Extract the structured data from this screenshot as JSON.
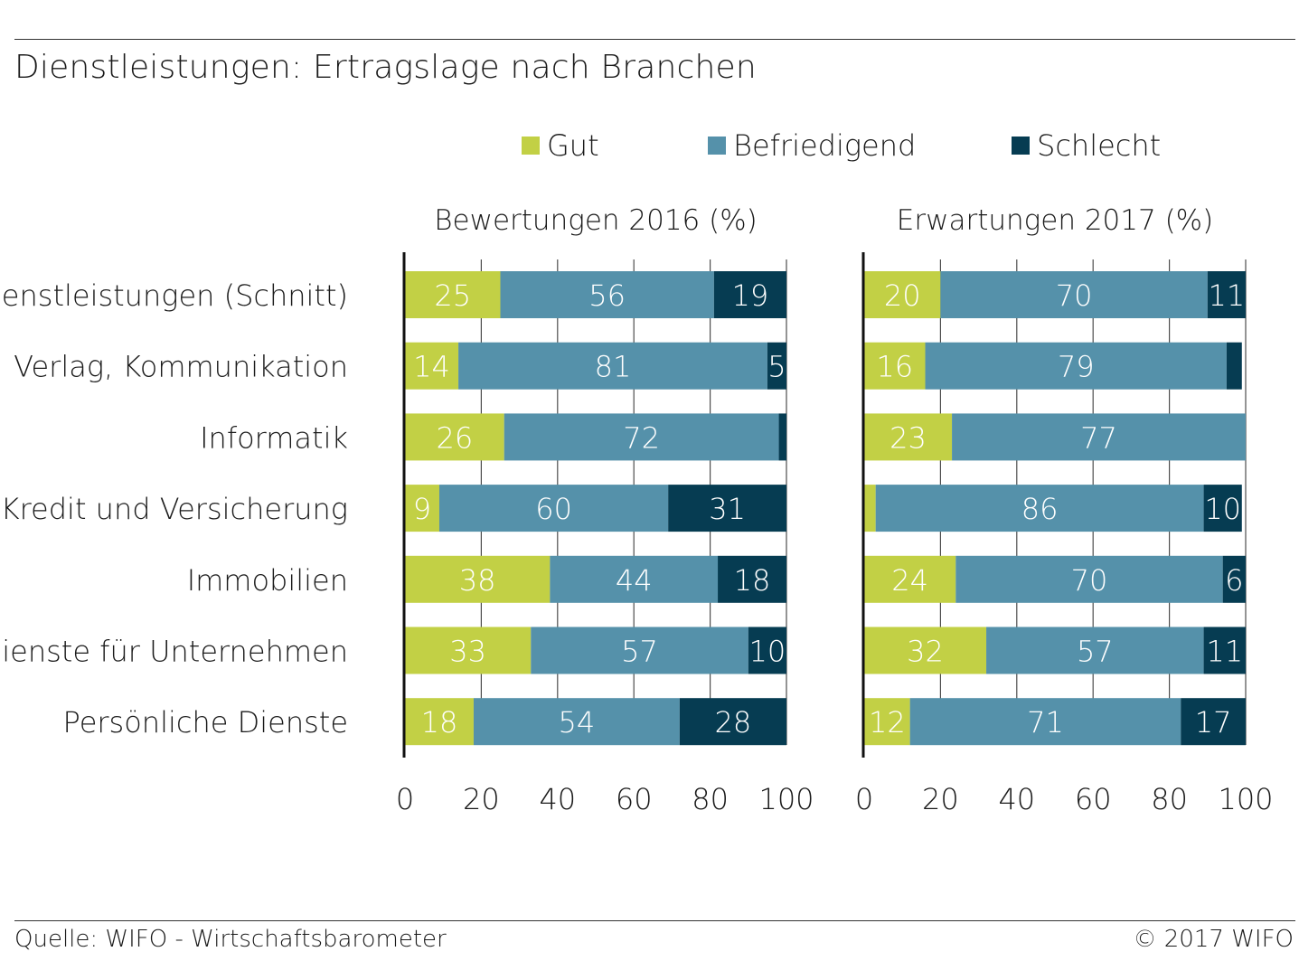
{
  "title": "Dienstleistungen: Ertragslage nach Branchen",
  "footer": {
    "source": "Quelle: WIFO - Wirtschaftsbarometer",
    "copyright": "© 2017 WIFO"
  },
  "colors": {
    "gut": "#c2d045",
    "befriedigend": "#5591aa",
    "schlecht": "#063c52",
    "grid": "#4d4d4d",
    "axis": "#111111"
  },
  "chart_data": {
    "type": "bar",
    "stacked": true,
    "orientation": "horizontal",
    "legend": {
      "position": "top",
      "entries": [
        "Gut",
        "Befriedigend",
        "Schlecht"
      ]
    },
    "categories": [
      "Dienstleistungen (Schnitt)",
      "Verlag, Kommunikation",
      "Informatik",
      "Kredit und Versicherung",
      "Immobilien",
      "Dienste für Unternehmen",
      "Persönliche Dienste"
    ],
    "xlim": [
      0,
      100
    ],
    "xticks": [
      "0",
      "20",
      "40",
      "60",
      "80",
      "100"
    ],
    "grid": true,
    "panels": [
      {
        "subtitle": "Bewertungen 2016 (%)",
        "series": [
          {
            "name": "Gut",
            "values": [
              25,
              14,
              26,
              9,
              38,
              33,
              18
            ],
            "labels": [
              "25",
              "14",
              "26",
              "9",
              "38",
              "33",
              "18"
            ]
          },
          {
            "name": "Befriedigend",
            "values": [
              56,
              81,
              72,
              60,
              44,
              57,
              54
            ],
            "labels": [
              "56",
              "81",
              "72",
              "60",
              "44",
              "57",
              "54"
            ]
          },
          {
            "name": "Schlecht",
            "values": [
              19,
              5,
              2,
              31,
              18,
              10,
              28
            ],
            "labels": [
              "19",
              "5",
              "",
              "31",
              "18",
              "10",
              "28"
            ]
          }
        ]
      },
      {
        "subtitle": "Erwartungen 2017 (%)",
        "series": [
          {
            "name": "Gut",
            "values": [
              20,
              16,
              23,
              3,
              24,
              32,
              12
            ],
            "labels": [
              "20",
              "16",
              "23",
              "",
              "24",
              "32",
              "12"
            ]
          },
          {
            "name": "Befriedigend",
            "values": [
              70,
              79,
              77,
              86,
              70,
              57,
              71
            ],
            "labels": [
              "70",
              "79",
              "77",
              "86",
              "70",
              "57",
              "71"
            ]
          },
          {
            "name": "Schlecht",
            "values": [
              11,
              4,
              0,
              10,
              6,
              11,
              17
            ],
            "labels": [
              "11",
              "",
              "",
              "10",
              "6",
              "11",
              "17"
            ]
          }
        ]
      }
    ]
  }
}
